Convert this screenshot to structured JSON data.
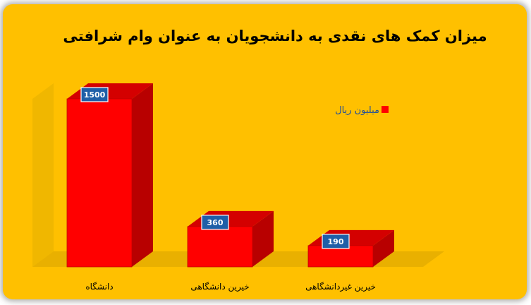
{
  "chart_data": {
    "type": "bar",
    "title": "میزان کمک های نقدی به دانشجویان به عنوان وام شرافتی",
    "categories": [
      "دانشگاه",
      "خیرین دانشگاهی",
      "خیرین غیردانشگاهی"
    ],
    "series": [
      {
        "name": "میلیون ریال",
        "values": [
          1500,
          360,
          190
        ]
      }
    ],
    "ylim": [
      0,
      1700
    ],
    "grid": false,
    "legend_position": "right",
    "colors": {
      "background": "#FFC000",
      "bar_front": "#FF0000",
      "bar_side": "#B80000",
      "bar_top": "#D40000",
      "label_box": "#1F5FA8",
      "legend_text": "#1F4E9A"
    }
  }
}
